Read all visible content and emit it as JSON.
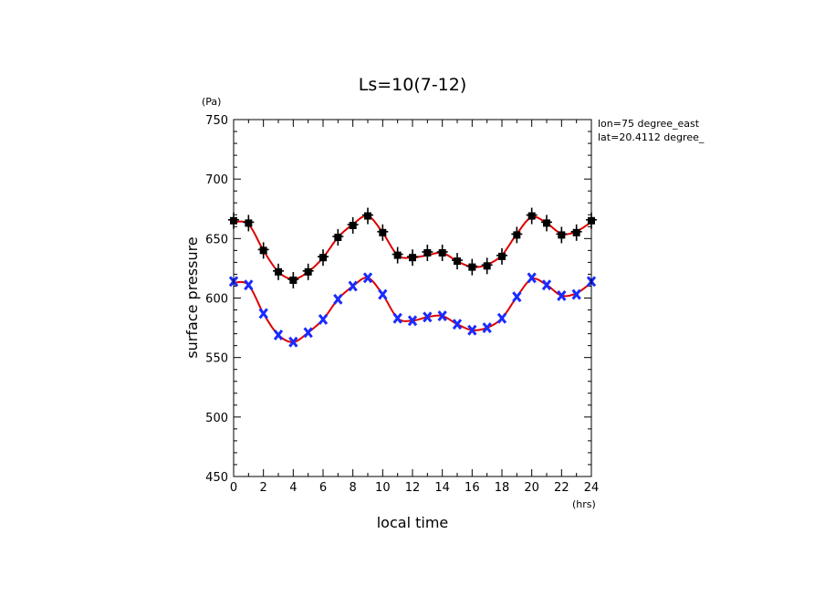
{
  "chart_data": {
    "type": "line",
    "title": "Ls=10(7-12)",
    "xlabel": "local time",
    "ylabel": "surface pressure",
    "xunit": "(hrs)",
    "yunit": "(Pa)",
    "xlim": [
      0,
      24
    ],
    "ylim": [
      450,
      750
    ],
    "xticks": [
      0,
      2,
      4,
      6,
      8,
      10,
      12,
      14,
      16,
      18,
      20,
      22,
      24
    ],
    "yticks": [
      450,
      500,
      550,
      600,
      650,
      700,
      750
    ],
    "grid": false,
    "legend": "none",
    "annotations": [
      "lon=75 degree_east",
      "lat=20.4112 degree_"
    ],
    "x": [
      0,
      1,
      2,
      3,
      4,
      5,
      6,
      7,
      8,
      9,
      10,
      11,
      12,
      13,
      14,
      15,
      16,
      17,
      18,
      19,
      20,
      21,
      22,
      23,
      24
    ],
    "series": [
      {
        "marker": "square-plus",
        "marker_color": "#000000",
        "line_color": "#dd0000",
        "values": [
          664,
          662,
          640,
          622,
          616,
          622,
          634,
          651,
          662,
          669,
          655,
          636,
          634,
          636,
          638,
          631,
          626,
          628,
          636,
          654,
          668,
          663,
          654,
          656,
          664
        ],
        "markers": [
          665,
          663,
          640,
          622,
          615,
          622,
          634,
          651,
          661,
          669,
          655,
          636,
          634,
          638,
          638,
          631,
          626,
          627,
          635,
          653,
          669,
          663,
          653,
          655,
          665
        ]
      },
      {
        "marker": "x",
        "marker_color": "#1a2bff",
        "line_color": "#dd0000",
        "values": [
          613,
          611,
          587,
          569,
          563,
          571,
          582,
          599,
          610,
          617,
          603,
          583,
          581,
          584,
          585,
          578,
          573,
          575,
          583,
          601,
          616,
          611,
          602,
          604,
          613
        ],
        "markers": [
          614,
          611,
          587,
          569,
          563,
          571,
          582,
          599,
          610,
          617,
          603,
          583,
          581,
          584,
          585,
          578,
          573,
          575,
          583,
          601,
          617,
          611,
          602,
          603,
          614
        ]
      }
    ]
  }
}
